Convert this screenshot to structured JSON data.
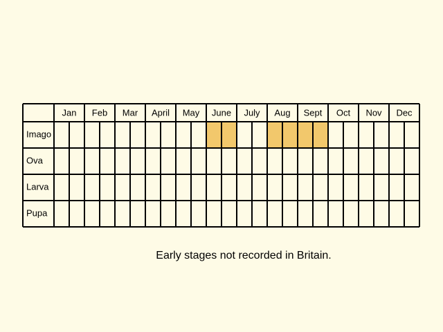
{
  "table": {
    "months": [
      "Jan",
      "Feb",
      "Mar",
      "April",
      "May",
      "June",
      "July",
      "Aug",
      "Sept",
      "Oct",
      "Nov",
      "Dec"
    ],
    "rows": [
      {
        "label": "Imago",
        "halves": [
          false,
          false,
          false,
          false,
          false,
          false,
          false,
          false,
          false,
          false,
          true,
          true,
          false,
          false,
          true,
          true,
          true,
          true,
          false,
          false,
          false,
          false,
          false,
          false
        ]
      },
      {
        "label": "Ova",
        "halves": [
          false,
          false,
          false,
          false,
          false,
          false,
          false,
          false,
          false,
          false,
          false,
          false,
          false,
          false,
          false,
          false,
          false,
          false,
          false,
          false,
          false,
          false,
          false,
          false
        ]
      },
      {
        "label": "Larva",
        "halves": [
          false,
          false,
          false,
          false,
          false,
          false,
          false,
          false,
          false,
          false,
          false,
          false,
          false,
          false,
          false,
          false,
          false,
          false,
          false,
          false,
          false,
          false,
          false,
          false
        ]
      },
      {
        "label": "Pupa",
        "halves": [
          false,
          false,
          false,
          false,
          false,
          false,
          false,
          false,
          false,
          false,
          false,
          false,
          false,
          false,
          false,
          false,
          false,
          false,
          false,
          false,
          false,
          false,
          false,
          false
        ]
      }
    ],
    "highlight_color": "#f2c86c",
    "note": "Early stages not recorded in Britain."
  }
}
